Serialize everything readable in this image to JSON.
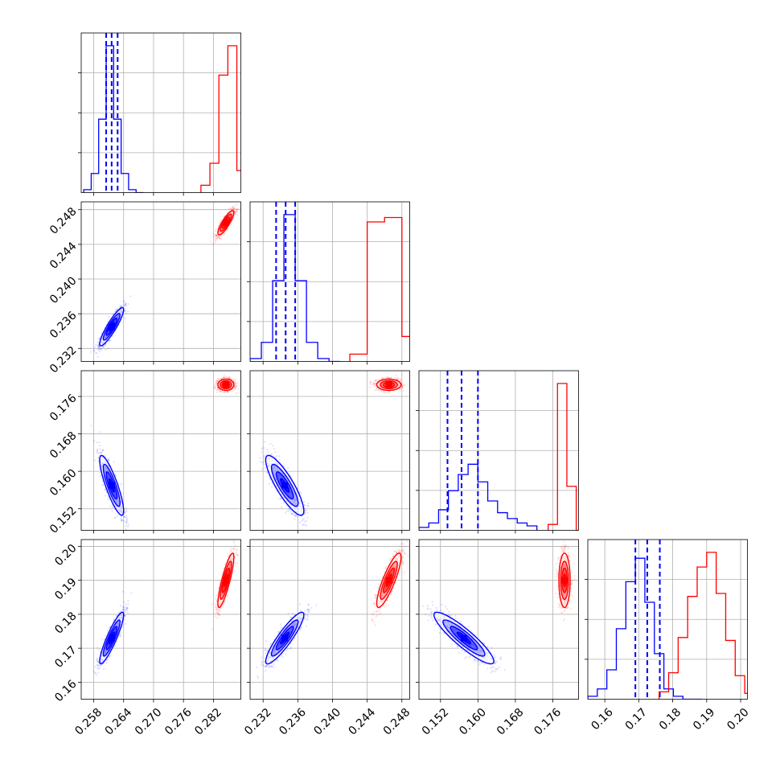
{
  "chart_data": {
    "type": "corner",
    "title": "",
    "parameters": [
      {
        "range": [
          0.2555,
          0.2875
        ],
        "ticks": [
          0.258,
          0.264,
          0.27,
          0.276,
          0.282
        ],
        "tick_labels": [
          "0.258",
          "0.264",
          "0.270",
          "0.276",
          "0.282"
        ]
      },
      {
        "range": [
          0.2305,
          0.2489
        ],
        "ticks": [
          0.232,
          0.236,
          0.24,
          0.244,
          0.248
        ],
        "tick_labels": [
          "0.232",
          "0.236",
          "0.240",
          "0.244",
          "0.248"
        ]
      },
      {
        "range": [
          0.1474,
          0.1815
        ],
        "ticks": [
          0.152,
          0.16,
          0.168,
          0.176
        ],
        "tick_labels": [
          "0.152",
          "0.160",
          "0.168",
          "0.176"
        ]
      },
      {
        "range": [
          0.155,
          0.202
        ],
        "ticks": [
          0.16,
          0.17,
          0.18,
          0.19,
          0.2
        ],
        "tick_labels": [
          "0.16",
          "0.17",
          "0.18",
          "0.19",
          "0.20"
        ]
      }
    ],
    "series": [
      {
        "color": "#0000ff",
        "mean": [
          0.2616,
          0.2345,
          0.157,
          0.173
        ],
        "sd": [
          0.0012,
          0.0011,
          0.0032,
          0.0038
        ],
        "corr": [
          [
            1,
            0.9,
            -0.85,
            0.9
          ],
          [
            0.9,
            1,
            -0.85,
            0.9
          ],
          [
            -0.85,
            -0.85,
            1,
            -0.9
          ],
          [
            0.9,
            0.9,
            -0.9,
            1
          ]
        ],
        "quantile_lines": [
          [
            0.2605,
            0.2616,
            0.2628
          ],
          [
            0.2335,
            0.2346,
            0.2357
          ],
          [
            0.1535,
            0.1565,
            0.16
          ],
          [
            0.169,
            0.1725,
            0.1762
          ]
        ],
        "histograms": [
          {
            "bins": [
              0.256,
              0.2575,
              0.259,
              0.2605,
              0.262,
              0.2635,
              0.265,
              0.2665,
              0.268
            ],
            "counts": [
              0.02,
              0.13,
              0.5,
              1.0,
              0.5,
              0.13,
              0.02,
              0.0
            ]
          },
          {
            "bins": [
              0.2305,
              0.2318,
              0.2331,
              0.2344,
              0.2357,
              0.237,
              0.2383,
              0.2396,
              0.2409
            ],
            "counts": [
              0.02,
              0.13,
              0.55,
              1.0,
              0.55,
              0.13,
              0.02,
              0.0
            ]
          },
          {
            "bins": [
              0.1474,
              0.1495,
              0.1516,
              0.1537,
              0.1558,
              0.1579,
              0.16,
              0.1621,
              0.1642,
              0.1663,
              0.1684,
              0.1705,
              0.1726
            ],
            "counts": [
              0.02,
              0.05,
              0.14,
              0.27,
              0.38,
              0.45,
              0.33,
              0.2,
              0.12,
              0.08,
              0.05,
              0.03
            ]
          },
          {
            "bins": [
              0.155,
              0.1578,
              0.1606,
              0.1634,
              0.1662,
              0.169,
              0.1718,
              0.1746,
              0.1774,
              0.1802,
              0.183,
              0.1858,
              0.1886
            ],
            "counts": [
              0.02,
              0.07,
              0.2,
              0.48,
              0.8,
              0.96,
              0.66,
              0.31,
              0.07,
              0.02,
              0.0,
              0.0
            ]
          }
        ]
      },
      {
        "color": "#ff0000",
        "mean": [
          0.2845,
          0.2465,
          0.1785,
          0.19
        ],
        "sd": [
          0.0008,
          0.0007,
          0.0006,
          0.004
        ],
        "corr": [
          [
            1,
            0.85,
            0.0,
            0.85
          ],
          [
            0.85,
            1,
            0.0,
            0.85
          ],
          [
            0.0,
            0.0,
            1,
            0.0
          ],
          [
            0.85,
            0.85,
            0.0,
            1
          ]
        ],
        "quantile_lines": null,
        "histograms": [
          {
            "bins": [
              0.2795,
              0.2813,
              0.2831,
              0.2849,
              0.2867,
              0.2885
            ],
            "counts": [
              0.05,
              0.2,
              0.8,
              1.0,
              0.15
            ]
          },
          {
            "bins": [
              0.242,
              0.244,
              0.246,
              0.248,
              0.25
            ],
            "counts": [
              0.05,
              0.95,
              0.98,
              0.17
            ]
          },
          {
            "bins": [
              0.175,
              0.177,
              0.179,
              0.181,
              0.183
            ],
            "counts": [
              0.04,
              1.0,
              0.3,
              0.0
            ]
          },
          {
            "bins": [
              0.176,
              0.1788,
              0.1816,
              0.1844,
              0.1872,
              0.19,
              0.1928,
              0.1956,
              0.1984,
              0.2012,
              0.204
            ],
            "counts": [
              0.05,
              0.18,
              0.42,
              0.7,
              0.9,
              1.0,
              0.72,
              0.4,
              0.16,
              0.04
            ]
          }
        ]
      }
    ],
    "grid": true,
    "legend": "none"
  }
}
